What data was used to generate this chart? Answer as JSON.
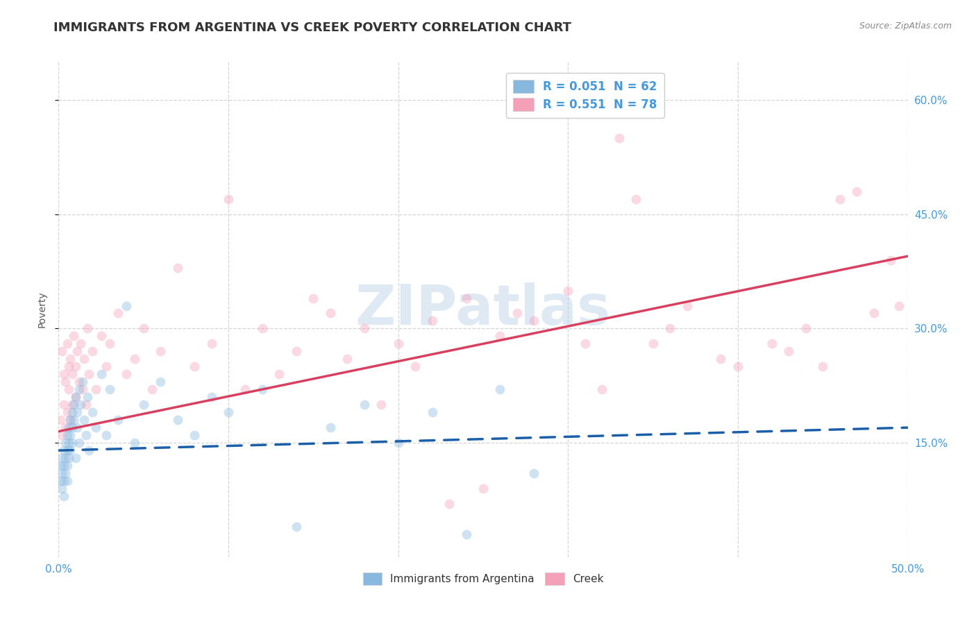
{
  "title": "IMMIGRANTS FROM ARGENTINA VS CREEK POVERTY CORRELATION CHART",
  "source": "Source: ZipAtlas.com",
  "ylabel": "Poverty",
  "ytick_labels": [
    "15.0%",
    "30.0%",
    "45.0%",
    "60.0%"
  ],
  "ytick_values": [
    0.15,
    0.3,
    0.45,
    0.6
  ],
  "xlim": [
    0.0,
    0.5
  ],
  "ylim": [
    0.0,
    0.65
  ],
  "watermark_text": "ZIPatlas",
  "legend_entries": [
    "R = 0.051  N = 62",
    "R = 0.551  N = 78"
  ],
  "legend_bottom": [
    "Immigrants from Argentina",
    "Creek"
  ],
  "blue_scatter_x": [
    0.001,
    0.001,
    0.002,
    0.002,
    0.002,
    0.003,
    0.003,
    0.003,
    0.003,
    0.004,
    0.004,
    0.004,
    0.005,
    0.005,
    0.005,
    0.005,
    0.006,
    0.006,
    0.006,
    0.007,
    0.007,
    0.007,
    0.008,
    0.008,
    0.008,
    0.009,
    0.009,
    0.01,
    0.01,
    0.011,
    0.011,
    0.012,
    0.012,
    0.013,
    0.014,
    0.015,
    0.016,
    0.017,
    0.018,
    0.02,
    0.022,
    0.025,
    0.028,
    0.03,
    0.035,
    0.04,
    0.045,
    0.05,
    0.06,
    0.07,
    0.08,
    0.09,
    0.1,
    0.12,
    0.14,
    0.16,
    0.18,
    0.2,
    0.22,
    0.24,
    0.26,
    0.28
  ],
  "blue_scatter_y": [
    0.12,
    0.1,
    0.13,
    0.11,
    0.09,
    0.14,
    0.12,
    0.1,
    0.08,
    0.15,
    0.13,
    0.11,
    0.16,
    0.14,
    0.12,
    0.1,
    0.17,
    0.15,
    0.13,
    0.18,
    0.16,
    0.14,
    0.19,
    0.17,
    0.15,
    0.2,
    0.18,
    0.21,
    0.13,
    0.19,
    0.17,
    0.22,
    0.15,
    0.2,
    0.23,
    0.18,
    0.16,
    0.21,
    0.14,
    0.19,
    0.17,
    0.24,
    0.16,
    0.22,
    0.18,
    0.33,
    0.15,
    0.2,
    0.23,
    0.18,
    0.16,
    0.21,
    0.19,
    0.22,
    0.04,
    0.17,
    0.2,
    0.15,
    0.19,
    0.03,
    0.22,
    0.11
  ],
  "pink_scatter_x": [
    0.001,
    0.002,
    0.002,
    0.003,
    0.003,
    0.004,
    0.004,
    0.005,
    0.005,
    0.006,
    0.006,
    0.007,
    0.007,
    0.008,
    0.008,
    0.009,
    0.01,
    0.01,
    0.011,
    0.012,
    0.013,
    0.014,
    0.015,
    0.016,
    0.017,
    0.018,
    0.02,
    0.022,
    0.025,
    0.028,
    0.03,
    0.035,
    0.04,
    0.045,
    0.05,
    0.055,
    0.06,
    0.07,
    0.08,
    0.09,
    0.1,
    0.11,
    0.12,
    0.13,
    0.14,
    0.15,
    0.16,
    0.17,
    0.18,
    0.19,
    0.2,
    0.21,
    0.22,
    0.23,
    0.24,
    0.25,
    0.26,
    0.27,
    0.28,
    0.3,
    0.31,
    0.32,
    0.33,
    0.34,
    0.35,
    0.36,
    0.37,
    0.39,
    0.4,
    0.42,
    0.43,
    0.44,
    0.45,
    0.46,
    0.47,
    0.48,
    0.49,
    0.495
  ],
  "pink_scatter_y": [
    0.18,
    0.16,
    0.27,
    0.2,
    0.24,
    0.23,
    0.17,
    0.28,
    0.19,
    0.25,
    0.22,
    0.26,
    0.18,
    0.24,
    0.2,
    0.29,
    0.21,
    0.25,
    0.27,
    0.23,
    0.28,
    0.22,
    0.26,
    0.2,
    0.3,
    0.24,
    0.27,
    0.22,
    0.29,
    0.25,
    0.28,
    0.32,
    0.24,
    0.26,
    0.3,
    0.22,
    0.27,
    0.38,
    0.25,
    0.28,
    0.47,
    0.22,
    0.3,
    0.24,
    0.27,
    0.34,
    0.32,
    0.26,
    0.3,
    0.2,
    0.28,
    0.25,
    0.31,
    0.07,
    0.34,
    0.09,
    0.29,
    0.32,
    0.31,
    0.35,
    0.28,
    0.22,
    0.55,
    0.47,
    0.28,
    0.3,
    0.33,
    0.26,
    0.25,
    0.28,
    0.27,
    0.3,
    0.25,
    0.47,
    0.48,
    0.32,
    0.39,
    0.33
  ],
  "blue_line_x": [
    0.0,
    0.5
  ],
  "blue_line_y": [
    0.14,
    0.17
  ],
  "pink_line_x": [
    0.0,
    0.5
  ],
  "pink_line_y": [
    0.165,
    0.395
  ],
  "scatter_color_blue": "#89b8df",
  "scatter_color_pink": "#f4a0b8",
  "line_color_blue": "#1a5fa8",
  "line_color_pink": "#d84060",
  "grid_color": "#d0d0d0",
  "background_color": "#ffffff",
  "title_color": "#333333",
  "tick_color": "#4499dd",
  "source_color": "#888888",
  "ylabel_color": "#555555",
  "title_fontsize": 13,
  "axis_label_fontsize": 10,
  "tick_fontsize": 11,
  "scatter_size": 100,
  "scatter_alpha": 0.4,
  "legend_color": "#4499dd"
}
